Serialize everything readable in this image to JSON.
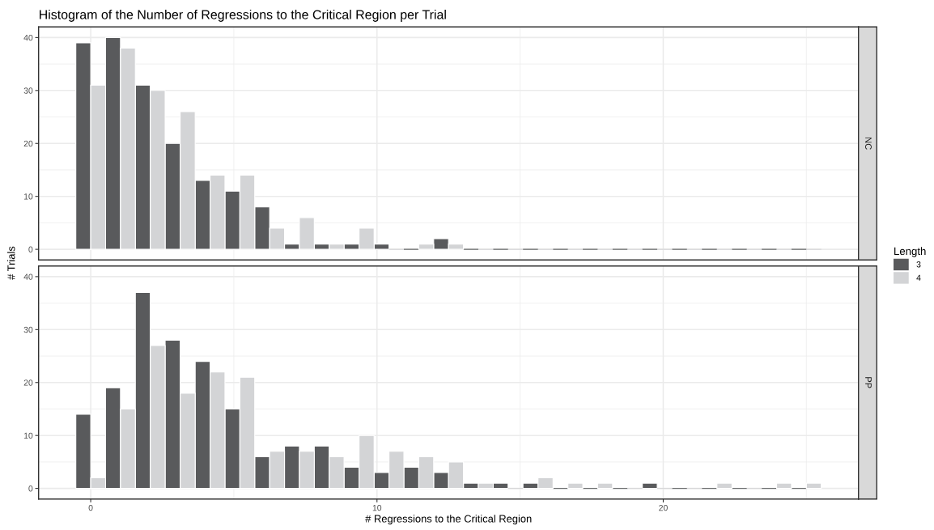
{
  "chart_data": [
    {
      "type": "histogram",
      "title": "Histogram of the Number of Regressions to the Critical Region per Trial",
      "ylabel": "# Trials",
      "legend_title": "Length",
      "annotations": [
        "NC"
      ],
      "bins": [
        -0.52,
        0.52,
        1.56,
        2.6,
        3.65,
        4.69,
        5.73,
        6.77,
        7.81,
        8.85,
        9.9,
        10.94,
        11.98,
        13.02,
        14.06,
        15.1,
        16.15,
        17.19,
        18.23,
        19.27,
        20.31,
        21.35,
        22.4,
        23.44,
        24.48,
        25.52
      ],
      "series": [
        {
          "name": "3",
          "color": "#595a5c",
          "values": [
            39,
            40,
            31,
            20,
            13,
            11,
            8,
            1,
            1,
            1,
            1,
            0,
            2,
            0,
            0,
            0,
            0,
            0,
            0,
            0,
            0,
            0,
            0,
            0,
            0
          ]
        },
        {
          "name": "4",
          "color": "#d3d4d6",
          "values": [
            31,
            38,
            30,
            26,
            14,
            14,
            4,
            6,
            1,
            4,
            0,
            1,
            1,
            0,
            0,
            0,
            0,
            0,
            0,
            0,
            0,
            0,
            0,
            0,
            0
          ]
        }
      ],
      "xlim": [
        -1.82,
        26.82
      ],
      "xticks": [
        0,
        10,
        20
      ],
      "ylim": [
        -2,
        42
      ],
      "yticks": [
        0,
        10,
        20,
        30,
        40
      ],
      "grid": true,
      "legend": "right",
      "tick_labels": "y"
    },
    {
      "type": "histogram",
      "xlabel": "# Regressions to the Critical Region",
      "annotations": [
        "PP"
      ],
      "bins": [
        -0.52,
        0.52,
        1.56,
        2.6,
        3.65,
        4.69,
        5.73,
        6.77,
        7.81,
        8.85,
        9.9,
        10.94,
        11.98,
        13.02,
        14.06,
        15.1,
        16.15,
        17.19,
        18.23,
        19.27,
        20.31,
        21.35,
        22.4,
        23.44,
        24.48,
        25.52
      ],
      "series": [
        {
          "color": "#595a5c",
          "values": [
            14,
            19,
            37,
            28,
            24,
            15,
            6,
            8,
            8,
            4,
            3,
            4,
            3,
            1,
            1,
            1,
            0,
            0,
            0,
            1,
            0,
            0,
            0,
            0,
            0
          ]
        },
        {
          "color": "#d3d4d6",
          "values": [
            2,
            15,
            27,
            18,
            22,
            21,
            7,
            7,
            6,
            10,
            7,
            6,
            5,
            1,
            0,
            2,
            1,
            1,
            0,
            0,
            0,
            1,
            0,
            1,
            1
          ]
        }
      ],
      "xlim": [
        -1.82,
        26.82
      ],
      "xticks": [
        0,
        10,
        20
      ],
      "ylim": [
        -2,
        42
      ],
      "yticks": [
        0,
        10,
        20,
        30,
        40
      ],
      "grid": true
    }
  ]
}
